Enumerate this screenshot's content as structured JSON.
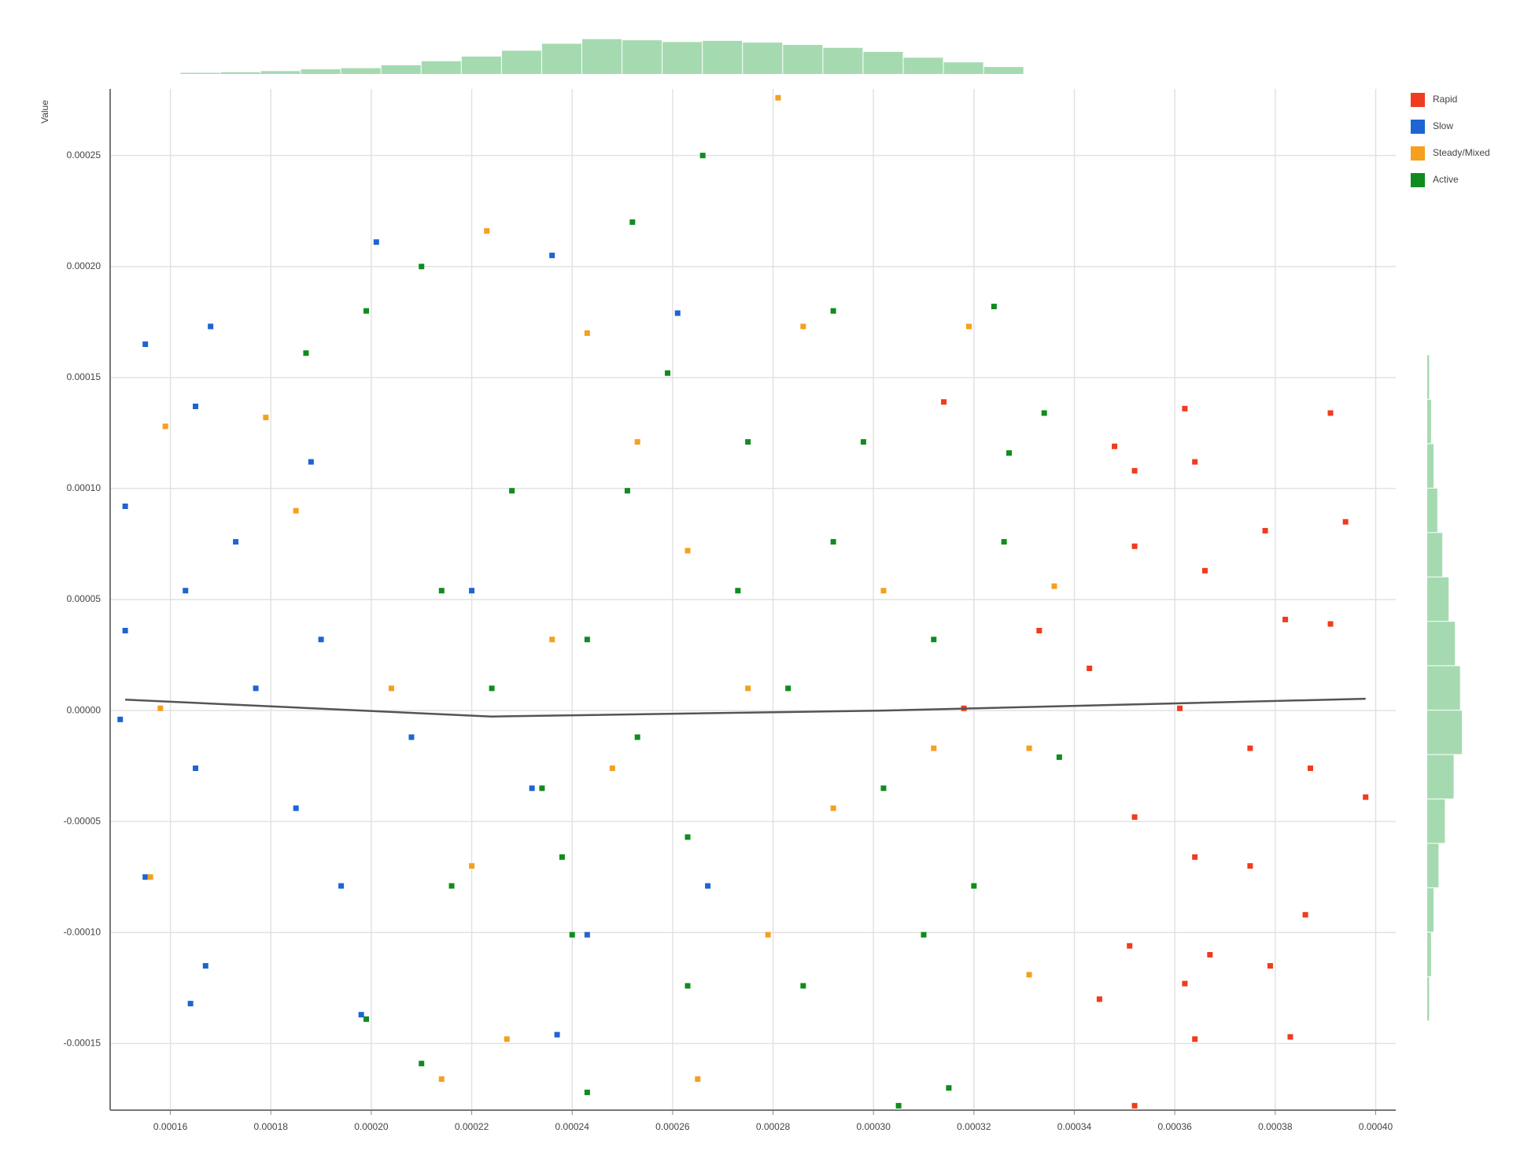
{
  "chart_data": {
    "type": "scatter",
    "y_label": "Value",
    "xlim": [
      0.000148,
      0.000404
    ],
    "ylim": [
      -0.00018,
      0.00028
    ],
    "grid": true,
    "legend": "top-right",
    "xticks": [
      {
        "value": 0.00016,
        "label": "0.00016"
      },
      {
        "value": 0.00018,
        "label": "0.00018"
      },
      {
        "value": 0.0002,
        "label": "0.00020"
      },
      {
        "value": 0.00022,
        "label": "0.00022"
      },
      {
        "value": 0.00024,
        "label": "0.00024"
      },
      {
        "value": 0.00026,
        "label": "0.00026"
      },
      {
        "value": 0.00028,
        "label": "0.00028"
      },
      {
        "value": 0.0003,
        "label": "0.00030"
      },
      {
        "value": 0.00032,
        "label": "0.00032"
      },
      {
        "value": 0.00034,
        "label": "0.00034"
      },
      {
        "value": 0.00036,
        "label": "0.00036"
      },
      {
        "value": 0.00038,
        "label": "0.00038"
      },
      {
        "value": 0.0004,
        "label": "0.00040"
      }
    ],
    "yticks": [
      {
        "value": 0.00025,
        "label": "0.00025"
      },
      {
        "value": 0.0002,
        "label": "0.00020"
      },
      {
        "value": 0.00015,
        "label": "0.00015"
      },
      {
        "value": 0.0001,
        "label": "0.00010"
      },
      {
        "value": 5e-05,
        "label": "0.00005"
      },
      {
        "value": 0,
        "label": "0.00000"
      },
      {
        "value": -5e-05,
        "label": "-0.00005"
      },
      {
        "value": -0.0001,
        "label": "-0.00010"
      },
      {
        "value": -0.00015,
        "label": "-0.00015"
      }
    ],
    "series": [
      {
        "name": "Rapid",
        "color": "#f03c1e",
        "x": [
          0.000391,
          0.000362,
          0.000394,
          0.000348,
          0.000352,
          0.000364,
          0.000378,
          0.000352,
          0.000366,
          0.000382,
          0.000391,
          0.000343,
          0.000361,
          0.000375,
          0.000387,
          0.000398,
          0.000352,
          0.000364,
          0.000375,
          0.000386,
          0.000351,
          0.000367,
          0.000379,
          0.000362,
          0.000345,
          0.000364,
          0.000383,
          0.000352,
          0.000314,
          0.000333,
          0.000318
        ],
        "values": [
          0.000134,
          0.000136,
          8.5e-05,
          0.000119,
          0.000108,
          0.000112,
          8.1e-05,
          7.4e-05,
          6.3e-05,
          4.1e-05,
          3.9e-05,
          1.9e-05,
          1e-06,
          -1.7e-05,
          -2.6e-05,
          -3.9e-05,
          -4.8e-05,
          -6.6e-05,
          -7e-05,
          -9.2e-05,
          -0.000106,
          -0.00011,
          -0.000115,
          -0.000123,
          -0.00013,
          -0.000148,
          -0.000147,
          -0.000178,
          0.000139,
          3.6e-05,
          1e-06
        ]
      },
      {
        "name": "Slow",
        "color": "#1e64d2",
        "x": [
          0.000155,
          0.000168,
          0.000201,
          0.000236,
          0.000165,
          0.000151,
          0.000151,
          0.000163,
          0.000173,
          0.000177,
          0.000165,
          0.000155,
          0.000167,
          0.000164,
          0.000185,
          0.00019,
          0.000194,
          0.000198,
          0.000208,
          0.00022,
          0.000232,
          0.000243,
          0.000261,
          0.000267,
          0.000237,
          0.000188,
          0.00015
        ],
        "values": [
          0.000165,
          0.000173,
          0.000211,
          0.000205,
          0.000137,
          9.2e-05,
          3.6e-05,
          5.4e-05,
          7.6e-05,
          1e-05,
          -2.6e-05,
          -7.5e-05,
          -0.000115,
          -0.000132,
          -4.4e-05,
          3.2e-05,
          -7.9e-05,
          -0.000137,
          -1.2e-05,
          5.4e-05,
          -3.5e-05,
          -0.000101,
          0.000179,
          -7.9e-05,
          -0.000146,
          0.000112,
          -4e-06
        ]
      },
      {
        "name": "Steady/Mixed",
        "color": "#f5a01e",
        "x": [
          0.000281,
          0.000223,
          0.000159,
          0.000179,
          0.000156,
          0.000158,
          0.000319,
          0.000286,
          0.000243,
          0.000214,
          0.000265,
          0.000227,
          0.000331,
          0.000331,
          0.000336,
          0.000204,
          0.000236,
          0.000248,
          0.000263,
          0.000275,
          0.000292,
          0.000302,
          0.000312,
          0.000185,
          0.00022,
          0.000279,
          0.000253
        ],
        "values": [
          0.000276,
          0.000216,
          0.000128,
          0.000132,
          -7.5e-05,
          1e-06,
          0.000173,
          0.000173,
          0.00017,
          -0.000166,
          -0.000166,
          -0.000148,
          -1.7e-05,
          -0.000119,
          5.6e-05,
          1e-05,
          3.2e-05,
          -2.6e-05,
          7.2e-05,
          1e-05,
          -4.4e-05,
          5.4e-05,
          -1.7e-05,
          9e-05,
          -7e-05,
          -0.000101,
          0.000121
        ]
      },
      {
        "name": "Active",
        "color": "#0f8c1e",
        "x": [
          0.000266,
          0.000252,
          0.00021,
          0.000199,
          0.000187,
          0.000324,
          0.000292,
          0.000334,
          0.000315,
          0.000305,
          0.000243,
          0.00021,
          0.000199,
          0.000337,
          0.000327,
          0.000214,
          0.000224,
          0.000234,
          0.000243,
          0.000253,
          0.000263,
          0.000273,
          0.000283,
          0.000292,
          0.000302,
          0.000312,
          0.00032,
          0.000326,
          0.000216,
          0.000228,
          0.00024,
          0.000251,
          0.000263,
          0.000275,
          0.000286,
          0.000298,
          0.00031,
          0.000259,
          0.000238
        ],
        "values": [
          0.00025,
          0.00022,
          0.0002,
          0.00018,
          0.000161,
          0.000182,
          0.00018,
          0.000134,
          -0.00017,
          -0.000178,
          -0.000172,
          -0.000159,
          -0.000139,
          -2.1e-05,
          0.000116,
          5.4e-05,
          1e-05,
          -3.5e-05,
          3.2e-05,
          -1.2e-05,
          -5.7e-05,
          5.4e-05,
          1e-05,
          7.6e-05,
          -3.5e-05,
          3.2e-05,
          -7.9e-05,
          7.6e-05,
          -7.9e-05,
          9.9e-05,
          -0.000101,
          9.9e-05,
          -0.000124,
          0.000121,
          -0.000124,
          0.000121,
          -0.000101,
          0.000152,
          -6.6e-05
        ]
      }
    ],
    "trend_line": {
      "color": "#555555",
      "x": [
        0.000151,
        0.000224,
        0.000302,
        0.000398
      ],
      "values": [
        4.9e-06,
        -2.7e-06,
        0,
        5.3e-06
      ]
    },
    "top_histogram": {
      "color": "#8fd19e",
      "bins": [
        0.000162,
        0.00017,
        0.000178,
        0.000186,
        0.000194,
        0.000202,
        0.00021,
        0.000218,
        0.000226,
        0.000234,
        0.000242,
        0.00025,
        0.000258,
        0.000266,
        0.000274,
        0.000282,
        0.00029,
        0.000298,
        0.000306,
        0.000314,
        0.000322,
        0.00033
      ],
      "counts": [
        2,
        3,
        5,
        8,
        10,
        15,
        22,
        30,
        40,
        52,
        60,
        58,
        55,
        57,
        54,
        50,
        45,
        38,
        28,
        20,
        12
      ],
      "ylim": [
        0,
        65
      ]
    },
    "right_histogram": {
      "color": "#8fd19e",
      "bins": [
        -0.00014,
        -0.00012,
        -0.0001,
        -8e-05,
        -6e-05,
        -4e-05,
        -2e-05,
        0,
        2e-05,
        4e-05,
        6e-05,
        8e-05,
        0.0001,
        0.00012,
        0.00014,
        0.00016
      ],
      "counts": [
        3,
        6,
        10,
        18,
        28,
        42,
        55,
        52,
        44,
        34,
        24,
        16,
        10,
        6,
        3
      ],
      "xlim": [
        0,
        60
      ]
    }
  }
}
